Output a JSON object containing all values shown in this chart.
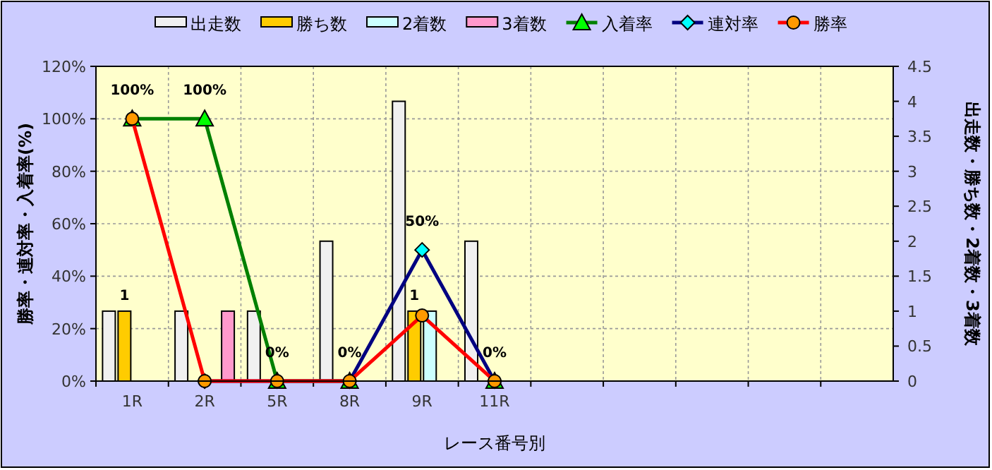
{
  "chart_data": {
    "type": "bar",
    "xlabel": "レース番号別",
    "ylabel": "勝率・連対率・入着率(%)",
    "y2label": "出走数・勝ち数・2着数・3着数",
    "categories": [
      "1R",
      "2R",
      "5R",
      "8R",
      "9R",
      "11R",
      null,
      null,
      null,
      null,
      null
    ],
    "ylim": [
      0,
      120
    ],
    "yticks": [
      {
        "value": 0,
        "label": "0%"
      },
      {
        "value": 20,
        "label": "20%"
      },
      {
        "value": 40,
        "label": "40%"
      },
      {
        "value": 60,
        "label": "60%"
      },
      {
        "value": 80,
        "label": "80%"
      },
      {
        "value": 100,
        "label": "100%"
      },
      {
        "value": 120,
        "label": "120%"
      }
    ],
    "y2lim": [
      0,
      4.5
    ],
    "y2ticks": [
      0,
      0.5,
      1,
      1.5,
      2,
      2.5,
      3,
      3.5,
      4,
      4.5
    ],
    "grid": true,
    "legend": "top",
    "series": [
      {
        "name": "出走数",
        "axis": "y2",
        "color": "#f0f0f0",
        "values": [
          1,
          1,
          1,
          2,
          4,
          2,
          null,
          null,
          null,
          null,
          null
        ]
      },
      {
        "name": "勝ち数",
        "axis": "y2",
        "color": "#ffcc00",
        "values": [
          1,
          0,
          0,
          0,
          1,
          0,
          null,
          null,
          null,
          null,
          null
        ],
        "value_labels": [
          "1",
          null,
          null,
          null,
          "1",
          null,
          null,
          null,
          null,
          null,
          null
        ]
      },
      {
        "name": "2着数",
        "axis": "y2",
        "color": "#ccffff",
        "values": [
          0,
          0,
          0,
          0,
          1,
          0,
          null,
          null,
          null,
          null,
          null
        ]
      },
      {
        "name": "3着数",
        "axis": "y2",
        "color": "#ff99cc",
        "values": [
          0,
          1,
          0,
          0,
          0,
          0,
          null,
          null,
          null,
          null,
          null
        ]
      },
      {
        "name": "入着率",
        "type": "line",
        "marker": "triangle",
        "color": "#008000",
        "colors": [
          "#00ff00",
          "#00ff00",
          "#00ff00",
          "#00ff00",
          "#00ff00",
          "#00ff00",
          null,
          null,
          null,
          null,
          null
        ],
        "values": [
          100,
          100,
          0,
          0,
          null,
          0,
          null,
          null,
          null,
          null,
          null
        ],
        "value_labels": [
          "100%",
          "100%",
          "0%",
          "0%",
          null,
          "0%",
          null,
          null,
          null,
          null,
          null
        ]
      },
      {
        "name": "連対率",
        "type": "line",
        "marker": "diamond",
        "color": "#000080",
        "colors": [
          "#00ffff",
          "#00ffff",
          "#00ffff",
          "#00ffff",
          "#00ffff",
          "#00ffff",
          null,
          null,
          null,
          null,
          null
        ],
        "values": [
          null,
          0,
          0,
          0,
          50,
          0,
          null,
          null,
          null,
          null,
          null
        ],
        "value_labels": [
          null,
          null,
          null,
          null,
          "50%",
          null,
          null,
          null,
          null,
          null,
          null
        ]
      },
      {
        "name": "勝率",
        "type": "line",
        "marker": "circle",
        "color": "#ff0000",
        "colors": [
          "#ff9900",
          "#ff9900",
          "#ff9900",
          "#ff9900",
          "#ff9900",
          "#ff9900",
          null,
          null,
          null,
          null,
          null
        ],
        "values": [
          100,
          0,
          0,
          0,
          25,
          0,
          null,
          null,
          null,
          null,
          null
        ]
      }
    ]
  }
}
